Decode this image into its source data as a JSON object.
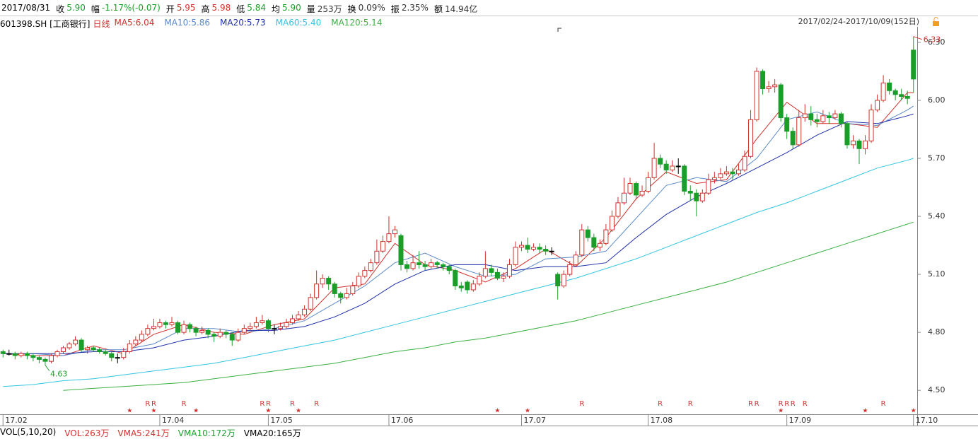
{
  "chart_data": {
    "type": "candlestick",
    "header": {
      "date": "2017/08/31",
      "items": [
        {
          "label": "收",
          "value": "5.90",
          "color": "#1a9e2a"
        },
        {
          "label": "幅",
          "value": "-1.17%(-0.07)",
          "color": "#1a9e2a"
        },
        {
          "label": "开",
          "value": "5.95",
          "color": "#d0312d"
        },
        {
          "label": "高",
          "value": "5.98",
          "color": "#d0312d"
        },
        {
          "label": "低",
          "value": "5.84",
          "color": "#1a9e2a"
        },
        {
          "label": "均",
          "value": "5.90",
          "color": "#1a9e2a"
        },
        {
          "label": "量",
          "value": "253万",
          "color": "#333333"
        },
        {
          "label": "换",
          "value": "0.09%",
          "color": "#333333"
        },
        {
          "label": "振",
          "value": "2.35%",
          "color": "#333333"
        },
        {
          "label": "额",
          "value": "14.94亿",
          "color": "#333333"
        }
      ]
    },
    "code": "601398.SH [工商银行]",
    "period": "日线",
    "range": "2017/02/24-2017/10/09(152日)",
    "up_color": "#d0312d",
    "down_color": "#1a9e2a",
    "xlim": [
      -0.5,
      151.5
    ],
    "ylim": [
      4.38,
      6.38
    ],
    "yticks": [
      {
        "value": 4.5,
        "label": "4.50"
      },
      {
        "value": 4.8,
        "label": "4.80"
      },
      {
        "value": 5.1,
        "label": "5.10"
      },
      {
        "value": 5.4,
        "label": "5.40"
      },
      {
        "value": 5.7,
        "label": "5.70"
      },
      {
        "value": 6.0,
        "label": "6.00"
      },
      {
        "value": 6.3,
        "label": "6.30"
      }
    ],
    "xticks": [
      {
        "value": 0,
        "label": "17.02"
      },
      {
        "value": 26,
        "label": "17.04"
      },
      {
        "value": 44,
        "label": "17.05"
      },
      {
        "value": 64,
        "label": "17.06"
      },
      {
        "value": 86,
        "label": "17.07"
      },
      {
        "value": 107,
        "label": "17.08"
      },
      {
        "value": 130,
        "label": "17.09"
      },
      {
        "value": 151,
        "label": "17.10"
      }
    ],
    "ohlc": [
      [
        4.7,
        4.71,
        4.67,
        4.69
      ],
      [
        4.69,
        4.71,
        4.68,
        4.69
      ],
      [
        4.69,
        4.7,
        4.66,
        4.68
      ],
      [
        4.68,
        4.7,
        4.67,
        4.69
      ],
      [
        4.69,
        4.7,
        4.66,
        4.68
      ],
      [
        4.68,
        4.69,
        4.65,
        4.67
      ],
      [
        4.67,
        4.68,
        4.64,
        4.66
      ],
      [
        4.66,
        4.67,
        4.63,
        4.65
      ],
      [
        4.65,
        4.69,
        4.64,
        4.68
      ],
      [
        4.68,
        4.71,
        4.67,
        4.7
      ],
      [
        4.7,
        4.73,
        4.69,
        4.72
      ],
      [
        4.72,
        4.75,
        4.71,
        4.74
      ],
      [
        4.74,
        4.78,
        4.73,
        4.76
      ],
      [
        4.76,
        4.77,
        4.7,
        4.71
      ],
      [
        4.71,
        4.73,
        4.69,
        4.72
      ],
      [
        4.72,
        4.73,
        4.7,
        4.71
      ],
      [
        4.71,
        4.72,
        4.69,
        4.7
      ],
      [
        4.7,
        4.71,
        4.68,
        4.69
      ],
      [
        4.69,
        4.7,
        4.65,
        4.67
      ],
      [
        4.67,
        4.69,
        4.64,
        4.67
      ],
      [
        4.67,
        4.72,
        4.66,
        4.7
      ],
      [
        4.7,
        4.76,
        4.69,
        4.74
      ],
      [
        4.74,
        4.78,
        4.73,
        4.76
      ],
      [
        4.76,
        4.81,
        4.75,
        4.79
      ],
      [
        4.79,
        4.84,
        4.78,
        4.82
      ],
      [
        4.82,
        4.87,
        4.81,
        4.83
      ],
      [
        4.83,
        4.87,
        4.82,
        4.85
      ],
      [
        4.85,
        4.86,
        4.82,
        4.84
      ],
      [
        4.84,
        4.88,
        4.83,
        4.85
      ],
      [
        4.85,
        4.86,
        4.79,
        4.8
      ],
      [
        4.8,
        4.86,
        4.79,
        4.84
      ],
      [
        4.84,
        4.85,
        4.8,
        4.82
      ],
      [
        4.82,
        4.83,
        4.78,
        4.8
      ],
      [
        4.8,
        4.83,
        4.79,
        4.81
      ],
      [
        4.81,
        4.82,
        4.77,
        4.79
      ],
      [
        4.79,
        4.8,
        4.75,
        4.78
      ],
      [
        4.78,
        4.82,
        4.77,
        4.8
      ],
      [
        4.8,
        4.81,
        4.77,
        4.79
      ],
      [
        4.79,
        4.8,
        4.73,
        4.76
      ],
      [
        4.76,
        4.82,
        4.75,
        4.8
      ],
      [
        4.8,
        4.84,
        4.79,
        4.82
      ],
      [
        4.82,
        4.85,
        4.81,
        4.83
      ],
      [
        4.83,
        4.88,
        4.82,
        4.85
      ],
      [
        4.85,
        4.89,
        4.84,
        4.86
      ],
      [
        4.86,
        4.87,
        4.8,
        4.82
      ],
      [
        4.82,
        4.84,
        4.79,
        4.82
      ],
      [
        4.82,
        4.85,
        4.81,
        4.83
      ],
      [
        4.83,
        4.87,
        4.82,
        4.85
      ],
      [
        4.85,
        4.89,
        4.84,
        4.87
      ],
      [
        4.87,
        4.91,
        4.86,
        4.89
      ],
      [
        4.89,
        4.94,
        4.88,
        4.92
      ],
      [
        4.92,
        5.0,
        4.91,
        4.98
      ],
      [
        4.98,
        5.12,
        4.97,
        5.05
      ],
      [
        5.05,
        5.1,
        5.03,
        5.08
      ],
      [
        5.08,
        5.09,
        5.02,
        5.05
      ],
      [
        5.05,
        5.06,
        4.98,
        5.0
      ],
      [
        5.0,
        5.01,
        4.95,
        4.98
      ],
      [
        4.98,
        5.03,
        4.97,
        5.0
      ],
      [
        5.0,
        5.06,
        4.99,
        5.04
      ],
      [
        5.04,
        5.11,
        5.03,
        5.09
      ],
      [
        5.09,
        5.14,
        5.08,
        5.12
      ],
      [
        5.12,
        5.18,
        5.11,
        5.16
      ],
      [
        5.16,
        5.28,
        5.15,
        5.22
      ],
      [
        5.22,
        5.3,
        5.21,
        5.27
      ],
      [
        5.27,
        5.4,
        5.26,
        5.31
      ],
      [
        5.31,
        5.35,
        5.29,
        5.33
      ],
      [
        5.3,
        5.31,
        5.12,
        5.15
      ],
      [
        5.15,
        5.17,
        5.11,
        5.13
      ],
      [
        5.13,
        5.2,
        5.12,
        5.16
      ],
      [
        5.16,
        5.22,
        5.13,
        5.15
      ],
      [
        5.15,
        5.17,
        5.12,
        5.14
      ],
      [
        5.14,
        5.18,
        5.13,
        5.16
      ],
      [
        5.16,
        5.17,
        5.13,
        5.15
      ],
      [
        5.15,
        5.16,
        5.12,
        5.14
      ],
      [
        5.14,
        5.15,
        5.1,
        5.12
      ],
      [
        5.12,
        5.13,
        5.02,
        5.04
      ],
      [
        5.04,
        5.06,
        5.01,
        5.03
      ],
      [
        5.06,
        5.07,
        5.0,
        5.02
      ],
      [
        5.02,
        5.07,
        5.01,
        5.05
      ],
      [
        5.05,
        5.11,
        5.04,
        5.09
      ],
      [
        5.09,
        5.22,
        5.08,
        5.13
      ],
      [
        5.13,
        5.15,
        5.09,
        5.11
      ],
      [
        5.11,
        5.13,
        5.07,
        5.08
      ],
      [
        5.08,
        5.11,
        5.06,
        5.09
      ],
      [
        5.09,
        5.18,
        5.08,
        5.15
      ],
      [
        5.15,
        5.27,
        5.14,
        5.24
      ],
      [
        5.24,
        5.27,
        5.22,
        5.25
      ],
      [
        5.25,
        5.29,
        5.21,
        5.23
      ],
      [
        5.23,
        5.26,
        5.22,
        5.24
      ],
      [
        5.24,
        5.26,
        5.21,
        5.23
      ],
      [
        5.23,
        5.25,
        5.2,
        5.22
      ],
      [
        5.22,
        5.24,
        5.2,
        5.22
      ],
      [
        5.1,
        5.11,
        4.97,
        5.04
      ],
      [
        5.04,
        5.12,
        5.03,
        5.1
      ],
      [
        5.1,
        5.17,
        5.09,
        5.15
      ],
      [
        5.15,
        5.22,
        5.14,
        5.2
      ],
      [
        5.2,
        5.36,
        5.19,
        5.33
      ],
      [
        5.33,
        5.35,
        5.27,
        5.29
      ],
      [
        5.29,
        5.31,
        5.22,
        5.24
      ],
      [
        5.24,
        5.28,
        5.22,
        5.26
      ],
      [
        5.26,
        5.36,
        5.25,
        5.33
      ],
      [
        5.33,
        5.43,
        5.32,
        5.4
      ],
      [
        5.4,
        5.5,
        5.39,
        5.47
      ],
      [
        5.47,
        5.6,
        5.46,
        5.52
      ],
      [
        5.52,
        5.6,
        5.51,
        5.57
      ],
      [
        5.57,
        5.58,
        5.49,
        5.51
      ],
      [
        5.51,
        5.56,
        5.5,
        5.53
      ],
      [
        5.53,
        5.63,
        5.52,
        5.6
      ],
      [
        5.6,
        5.78,
        5.59,
        5.7
      ],
      [
        5.7,
        5.72,
        5.65,
        5.67
      ],
      [
        5.67,
        5.69,
        5.62,
        5.64
      ],
      [
        5.64,
        5.69,
        5.63,
        5.66
      ],
      [
        5.66,
        5.7,
        5.62,
        5.66
      ],
      [
        5.66,
        5.67,
        5.51,
        5.53
      ],
      [
        5.53,
        5.56,
        5.48,
        5.52
      ],
      [
        5.52,
        5.54,
        5.4,
        5.48
      ],
      [
        5.48,
        5.54,
        5.47,
        5.52
      ],
      [
        5.52,
        5.62,
        5.51,
        5.59
      ],
      [
        5.59,
        5.63,
        5.57,
        5.6
      ],
      [
        5.6,
        5.65,
        5.59,
        5.62
      ],
      [
        5.62,
        5.66,
        5.61,
        5.63
      ],
      [
        5.63,
        5.65,
        5.59,
        5.62
      ],
      [
        5.62,
        5.67,
        5.61,
        5.64
      ],
      [
        5.64,
        5.74,
        5.63,
        5.71
      ],
      [
        5.71,
        5.95,
        5.7,
        5.9
      ],
      [
        5.9,
        6.17,
        5.89,
        6.15
      ],
      [
        6.15,
        6.16,
        6.03,
        6.06
      ],
      [
        6.06,
        6.1,
        6.04,
        6.07
      ],
      [
        6.07,
        6.11,
        6.04,
        6.08
      ],
      [
        6.08,
        6.09,
        5.89,
        5.91
      ],
      [
        5.91,
        5.93,
        5.8,
        5.84
      ],
      [
        5.84,
        5.86,
        5.75,
        5.77
      ],
      [
        5.77,
        5.95,
        5.76,
        5.91
      ],
      [
        5.91,
        5.98,
        5.89,
        5.93
      ],
      [
        5.93,
        5.97,
        5.87,
        5.9
      ],
      [
        5.9,
        5.93,
        5.86,
        5.89
      ],
      [
        5.89,
        5.95,
        5.88,
        5.92
      ],
      [
        5.92,
        5.94,
        5.88,
        5.91
      ],
      [
        5.91,
        5.95,
        5.9,
        5.93
      ],
      [
        5.93,
        5.94,
        5.86,
        5.88
      ],
      [
        5.88,
        5.89,
        5.75,
        5.77
      ],
      [
        5.77,
        5.82,
        5.75,
        5.79
      ],
      [
        5.79,
        5.8,
        5.67,
        5.75
      ],
      [
        5.75,
        5.82,
        5.72,
        5.79
      ],
      [
        5.79,
        5.98,
        5.78,
        5.95
      ],
      [
        5.95,
        6.03,
        5.94,
        6.0
      ],
      [
        6.0,
        6.13,
        5.99,
        6.09
      ],
      [
        6.09,
        6.11,
        6.03,
        6.05
      ],
      [
        6.05,
        6.06,
        6.0,
        6.03
      ],
      [
        6.03,
        6.06,
        6.0,
        6.02
      ],
      [
        6.02,
        6.05,
        5.98,
        6.01
      ],
      [
        6.26,
        6.33,
        6.04,
        6.11
      ]
    ],
    "series": [
      {
        "legend": "MA5:6.04",
        "color": "#d0312d",
        "x": [
          0,
          5,
          10,
          15,
          20,
          25,
          30,
          35,
          40,
          45,
          50,
          55,
          60,
          65,
          70,
          75,
          80,
          85,
          90,
          95,
          100,
          105,
          110,
          115,
          120,
          125,
          130,
          135,
          140,
          145,
          150,
          151
        ],
        "values": [
          4.69,
          4.68,
          4.68,
          4.73,
          4.69,
          4.79,
          4.84,
          4.8,
          4.79,
          4.84,
          4.87,
          5.03,
          5.05,
          5.26,
          5.15,
          5.12,
          5.06,
          5.13,
          5.23,
          5.14,
          5.29,
          5.49,
          5.63,
          5.57,
          5.59,
          5.8,
          5.99,
          5.88,
          5.88,
          5.86,
          6.04,
          6.04
        ]
      },
      {
        "legend": "MA10:5.86",
        "color": "#5b8ac7",
        "x": [
          0,
          5,
          10,
          15,
          20,
          25,
          30,
          35,
          40,
          45,
          50,
          55,
          60,
          65,
          70,
          75,
          80,
          85,
          90,
          95,
          100,
          105,
          110,
          115,
          120,
          125,
          130,
          135,
          140,
          145,
          150,
          151
        ],
        "values": [
          4.69,
          4.69,
          4.68,
          4.71,
          4.71,
          4.74,
          4.82,
          4.82,
          4.8,
          4.82,
          4.86,
          4.95,
          5.04,
          5.16,
          5.21,
          5.14,
          5.09,
          5.1,
          5.18,
          5.19,
          5.22,
          5.39,
          5.56,
          5.6,
          5.58,
          5.7,
          5.9,
          5.94,
          5.88,
          5.87,
          5.95,
          5.97
        ]
      },
      {
        "legend": "MA20:5.73",
        "color": "#1f2fa8",
        "x": [
          0,
          5,
          10,
          15,
          20,
          25,
          30,
          35,
          40,
          45,
          50,
          55,
          60,
          65,
          70,
          75,
          80,
          85,
          90,
          95,
          100,
          105,
          110,
          115,
          120,
          125,
          130,
          135,
          140,
          145,
          150,
          151
        ],
        "values": [
          4.69,
          4.69,
          4.69,
          4.7,
          4.7,
          4.72,
          4.76,
          4.78,
          4.81,
          4.81,
          4.83,
          4.88,
          4.95,
          5.05,
          5.12,
          5.15,
          5.15,
          5.12,
          5.14,
          5.14,
          5.16,
          5.29,
          5.41,
          5.5,
          5.57,
          5.65,
          5.73,
          5.82,
          5.89,
          5.88,
          5.92,
          5.93
        ]
      },
      {
        "legend": "MA60:5.40",
        "color": "#33c5e0",
        "x": [
          0,
          5,
          10,
          15,
          20,
          25,
          30,
          35,
          40,
          45,
          50,
          55,
          60,
          65,
          70,
          75,
          80,
          85,
          90,
          95,
          100,
          105,
          110,
          115,
          120,
          125,
          130,
          135,
          140,
          145,
          150,
          151
        ],
        "values": [
          4.52,
          4.53,
          4.55,
          4.56,
          4.58,
          4.6,
          4.62,
          4.64,
          4.67,
          4.7,
          4.73,
          4.76,
          4.8,
          4.84,
          4.88,
          4.92,
          4.96,
          5.0,
          5.04,
          5.08,
          5.13,
          5.18,
          5.24,
          5.3,
          5.36,
          5.42,
          5.47,
          5.53,
          5.59,
          5.65,
          5.69,
          5.7
        ]
      },
      {
        "legend": "MA120:5.14",
        "color": "#3cb043",
        "x": [
          0,
          5,
          10,
          15,
          20,
          25,
          30,
          35,
          40,
          45,
          50,
          55,
          60,
          65,
          70,
          75,
          80,
          85,
          90,
          95,
          100,
          105,
          110,
          115,
          120,
          125,
          130,
          135,
          140,
          145,
          150,
          151
        ],
        "values": [
          null,
          null,
          4.5,
          4.51,
          4.52,
          4.53,
          4.54,
          4.56,
          4.58,
          4.6,
          4.62,
          4.64,
          4.67,
          4.7,
          4.72,
          4.75,
          4.77,
          4.8,
          4.83,
          4.86,
          4.9,
          4.94,
          4.98,
          5.02,
          5.06,
          5.11,
          5.16,
          5.21,
          5.26,
          5.31,
          5.36,
          5.37
        ]
      }
    ],
    "annotations": [
      {
        "index": 151,
        "value": 6.33,
        "color": "#d0312d"
      },
      {
        "index": 7,
        "value": 4.63,
        "color": "#1a9e2a"
      }
    ],
    "r_markers": {
      "label": "R",
      "x": [
        24,
        25,
        30,
        43,
        44,
        48,
        52,
        96,
        109,
        114,
        124,
        125,
        129,
        130,
        131,
        133,
        146
      ]
    },
    "star_markers": {
      "label": "★",
      "x": [
        21,
        25,
        32,
        44,
        49,
        82,
        87,
        129,
        143,
        151
      ]
    },
    "volume_line": [
      {
        "text": "VOL(5,10,20)",
        "color": "#000000"
      },
      {
        "text": "VOL:263万",
        "color": "#d0312d"
      },
      {
        "text": "VMA5:241万",
        "color": "#d0312d"
      },
      {
        "text": "VMA10:172万",
        "color": "#1a9e2a"
      },
      {
        "text": "VMA20:165万",
        "color": "#000000"
      }
    ]
  }
}
